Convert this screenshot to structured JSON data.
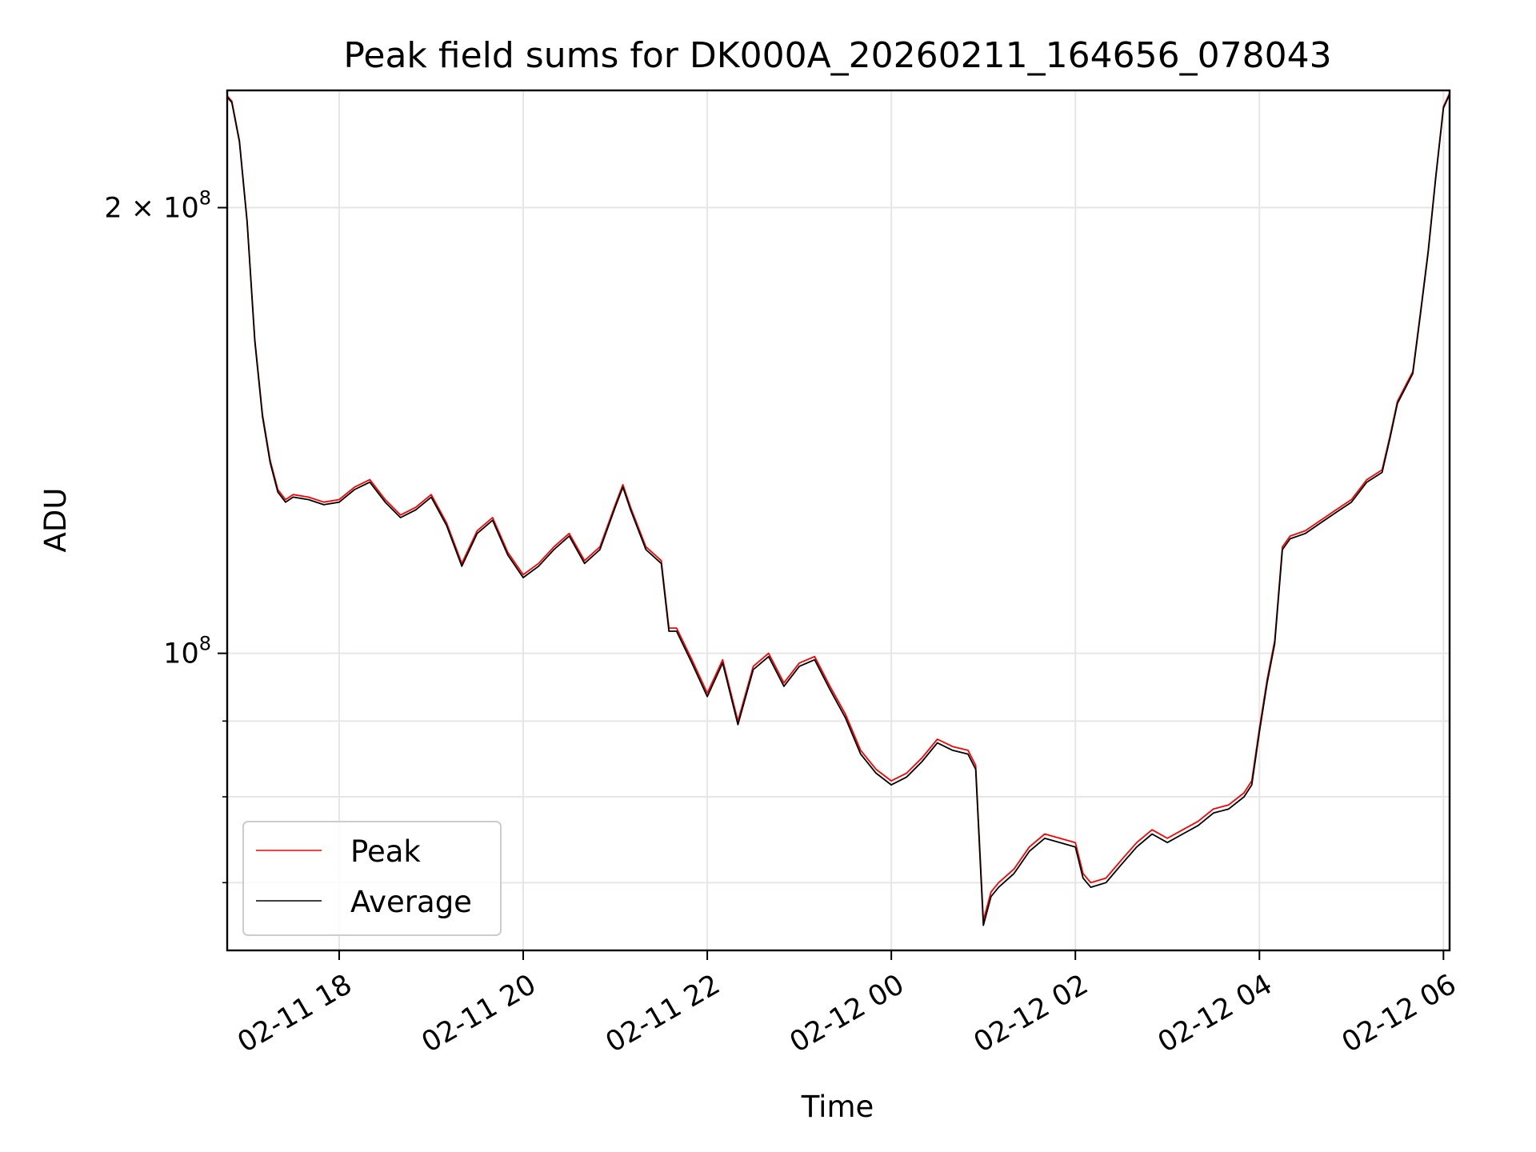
{
  "chart_data": {
    "type": "line",
    "title": "Peak field sums for DK000A_20260211_164656_078043",
    "xlabel": "Time",
    "ylabel": "ADU",
    "y_scale": "log",
    "ylim": [
      63000000,
      240000000
    ],
    "xlim": [
      "02-11 16:47",
      "02-12 06:04"
    ],
    "grid": true,
    "legend_position": "lower-left",
    "x_ticks": [
      "02-11 18",
      "02-11 20",
      "02-11 22",
      "02-12 00",
      "02-12 02",
      "02-12 04",
      "02-12 06"
    ],
    "y_ticks": [
      {
        "value": 200000000,
        "base": "2 × 10",
        "exp": "8"
      },
      {
        "value": 100000000,
        "base": "10",
        "exp": "8"
      }
    ],
    "y_minor_ticks": [
      90000000,
      80000000,
      70000000
    ],
    "x": [
      "02-11 16:47",
      "02-11 16:50",
      "02-11 16:55",
      "02-11 17:00",
      "02-11 17:05",
      "02-11 17:10",
      "02-11 17:15",
      "02-11 17:20",
      "02-11 17:25",
      "02-11 17:30",
      "02-11 17:40",
      "02-11 17:50",
      "02-11 18:00",
      "02-11 18:10",
      "02-11 18:20",
      "02-11 18:30",
      "02-11 18:40",
      "02-11 18:50",
      "02-11 19:00",
      "02-11 19:10",
      "02-11 19:20",
      "02-11 19:30",
      "02-11 19:40",
      "02-11 19:50",
      "02-11 20:00",
      "02-11 20:10",
      "02-11 20:20",
      "02-11 20:30",
      "02-11 20:40",
      "02-11 20:50",
      "02-11 21:00",
      "02-11 21:05",
      "02-11 21:10",
      "02-11 21:20",
      "02-11 21:30",
      "02-11 21:35",
      "02-11 21:40",
      "02-11 21:50",
      "02-11 22:00",
      "02-11 22:10",
      "02-11 22:20",
      "02-11 22:30",
      "02-11 22:40",
      "02-11 22:50",
      "02-11 23:00",
      "02-11 23:10",
      "02-11 23:20",
      "02-11 23:30",
      "02-11 23:40",
      "02-11 23:50",
      "02-12 00:00",
      "02-12 00:10",
      "02-12 00:20",
      "02-12 00:30",
      "02-12 00:40",
      "02-12 00:50",
      "02-12 00:55",
      "02-12 01:00",
      "02-12 01:05",
      "02-12 01:10",
      "02-12 01:20",
      "02-12 01:30",
      "02-12 01:40",
      "02-12 01:50",
      "02-12 02:00",
      "02-12 02:05",
      "02-12 02:10",
      "02-12 02:20",
      "02-12 02:30",
      "02-12 02:40",
      "02-12 02:50",
      "02-12 03:00",
      "02-12 03:10",
      "02-12 03:20",
      "02-12 03:30",
      "02-12 03:40",
      "02-12 03:50",
      "02-12 03:55",
      "02-12 04:00",
      "02-12 04:05",
      "02-12 04:10",
      "02-12 04:15",
      "02-12 04:20",
      "02-12 04:30",
      "02-12 04:40",
      "02-12 04:50",
      "02-12 05:00",
      "02-12 05:10",
      "02-12 05:20",
      "02-12 05:25",
      "02-12 05:30",
      "02-12 05:40",
      "02-12 05:45",
      "02-12 05:50",
      "02-12 05:55",
      "02-12 06:00",
      "02-12 06:04"
    ],
    "series": [
      {
        "name": "Peak",
        "color": "#ff0000",
        "values": [
          238000000,
          236000000,
          222000000,
          196000000,
          163000000,
          145000000,
          135000000,
          129000000,
          127000000,
          128000000,
          127500000,
          126500000,
          127000000,
          129500000,
          131000000,
          127000000,
          124000000,
          125500000,
          128000000,
          122500000,
          115000000,
          121000000,
          123500000,
          117000000,
          113000000,
          115000000,
          118000000,
          120500000,
          115500000,
          118000000,
          126000000,
          130000000,
          125500000,
          118000000,
          115500000,
          104000000,
          104000000,
          99000000,
          94000000,
          99000000,
          90000000,
          98000000,
          100000000,
          95500000,
          98500000,
          99500000,
          95000000,
          91000000,
          86000000,
          83500000,
          82000000,
          83000000,
          85000000,
          87500000,
          86500000,
          86000000,
          84000000,
          66000000,
          69000000,
          70000000,
          71500000,
          74000000,
          75500000,
          75000000,
          74500000,
          71000000,
          70000000,
          70500000,
          72500000,
          74500000,
          76000000,
          75000000,
          76000000,
          77000000,
          78500000,
          79000000,
          80500000,
          82000000,
          89000000,
          96000000,
          102000000,
          118000000,
          120000000,
          121000000,
          123000000,
          125000000,
          127000000,
          131000000,
          133000000,
          140000000,
          148000000,
          155000000,
          170000000,
          187000000,
          210000000,
          234000000,
          239000000
        ]
      },
      {
        "name": "Average",
        "color": "#000000",
        "values": [
          237500000,
          235500000,
          221500000,
          195500000,
          162500000,
          144500000,
          134500000,
          128500000,
          126500000,
          127500000,
          127000000,
          126000000,
          126500000,
          129000000,
          130500000,
          126500000,
          123500000,
          125000000,
          127500000,
          122000000,
          114500000,
          120500000,
          123000000,
          116500000,
          112500000,
          114500000,
          117500000,
          120000000,
          115000000,
          117500000,
          125500000,
          129500000,
          125000000,
          117500000,
          115000000,
          103500000,
          103500000,
          98500000,
          93500000,
          98500000,
          89500000,
          97500000,
          99500000,
          95000000,
          98000000,
          99000000,
          94500000,
          90500000,
          85500000,
          83000000,
          81500000,
          82500000,
          84500000,
          87000000,
          86000000,
          85500000,
          83500000,
          65500000,
          68500000,
          69500000,
          71000000,
          73500000,
          75000000,
          74500000,
          74000000,
          70500000,
          69500000,
          70000000,
          72000000,
          74000000,
          75500000,
          74500000,
          75500000,
          76500000,
          78000000,
          78500000,
          80000000,
          81500000,
          88500000,
          95500000,
          101500000,
          117500000,
          119500000,
          120500000,
          122500000,
          124500000,
          126500000,
          130500000,
          132500000,
          139500000,
          147500000,
          154500000,
          169500000,
          186500000,
          209500000,
          233500000,
          238500000
        ]
      }
    ]
  }
}
